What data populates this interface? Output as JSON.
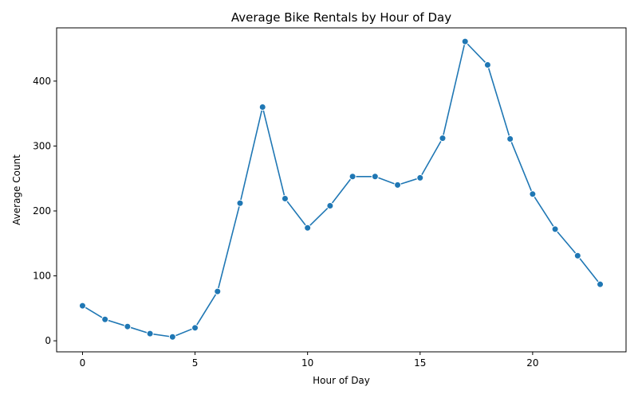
{
  "chart_data": {
    "type": "line",
    "title": "Average Bike Rentals by Hour of Day",
    "xlabel": "Hour of Day",
    "ylabel": "Average Count",
    "xlim": [
      -1.15,
      24.15
    ],
    "ylim": [
      -17,
      482
    ],
    "xticks": [
      0,
      5,
      10,
      15,
      20
    ],
    "yticks": [
      0,
      100,
      200,
      300,
      400
    ],
    "grid": false,
    "color": "#1f77b4",
    "series": [
      {
        "x": [
          0,
          1,
          2,
          3,
          4,
          5,
          6,
          7,
          8,
          9,
          10,
          11,
          12,
          13,
          14,
          15,
          16,
          17,
          18,
          19,
          20,
          21,
          22,
          23
        ],
        "values": [
          54,
          33,
          22,
          11,
          6,
          20,
          76,
          212,
          360,
          219,
          174,
          208,
          253,
          253,
          240,
          251,
          312,
          461,
          425,
          311,
          226,
          172,
          131,
          87
        ]
      }
    ]
  }
}
